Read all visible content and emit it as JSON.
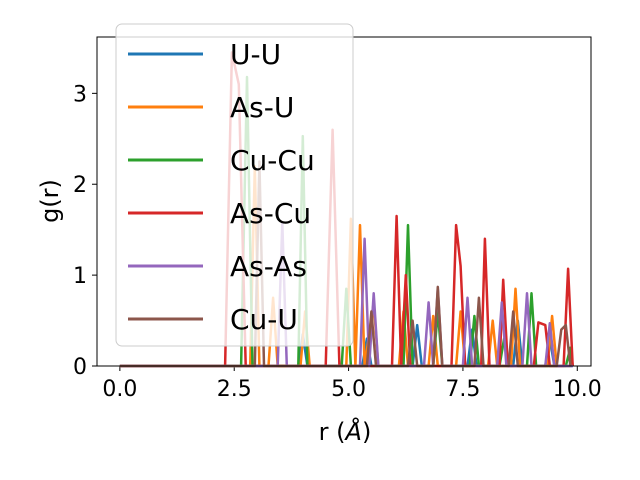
{
  "chart_data": {
    "type": "line",
    "xlabel_main": "r (",
    "xlabel_unit": "Å",
    "xlabel_close": ")",
    "ylabel": "g(r)",
    "xlim": [
      -0.5,
      10.3
    ],
    "ylim": [
      0,
      3.62
    ],
    "xticks": [
      0.0,
      2.5,
      5.0,
      7.5,
      10.0
    ],
    "xtick_labels": [
      "0.0",
      "2.5",
      "5.0",
      "7.5",
      "10.0"
    ],
    "yticks": [
      0,
      1,
      2,
      3
    ],
    "ytick_labels": [
      "0",
      "1",
      "2",
      "3"
    ],
    "grid": false,
    "legend_position": "upper-left",
    "series": [
      {
        "name": "U-U",
        "color": "#1f77b4",
        "points": [
          [
            0,
            0
          ],
          [
            3.9,
            0
          ],
          [
            4.0,
            0.35
          ],
          [
            4.1,
            0
          ],
          [
            5.3,
            0
          ],
          [
            5.4,
            0.3
          ],
          [
            5.5,
            0
          ],
          [
            6.4,
            0
          ],
          [
            6.5,
            0.45
          ],
          [
            6.6,
            0
          ],
          [
            7.6,
            0
          ],
          [
            7.7,
            0.4
          ],
          [
            7.8,
            0
          ],
          [
            8.6,
            0
          ],
          [
            8.7,
            0.5
          ],
          [
            8.8,
            0
          ],
          [
            9.3,
            0
          ],
          [
            9.4,
            0.3
          ],
          [
            9.5,
            0
          ],
          [
            9.9,
            0
          ]
        ]
      },
      {
        "name": "As-U",
        "color": "#ff7f0e",
        "points": [
          [
            0,
            0
          ],
          [
            2.85,
            0
          ],
          [
            2.95,
            2.2
          ],
          [
            3.05,
            0
          ],
          [
            3.25,
            0
          ],
          [
            3.35,
            0.75
          ],
          [
            3.45,
            0
          ],
          [
            3.95,
            0
          ],
          [
            4.05,
            0.6
          ],
          [
            4.15,
            0
          ],
          [
            4.95,
            0
          ],
          [
            5.05,
            1.62
          ],
          [
            5.15,
            0
          ],
          [
            5.25,
            1.55
          ],
          [
            5.35,
            0
          ],
          [
            5.55,
            0.7
          ],
          [
            5.65,
            0
          ],
          [
            6.1,
            0
          ],
          [
            6.2,
            0.6
          ],
          [
            6.3,
            0
          ],
          [
            6.75,
            0
          ],
          [
            6.85,
            0.55
          ],
          [
            6.95,
            0
          ],
          [
            7.35,
            0
          ],
          [
            7.45,
            0.6
          ],
          [
            7.55,
            0
          ],
          [
            8.05,
            0
          ],
          [
            8.15,
            0.5
          ],
          [
            8.25,
            0
          ],
          [
            8.55,
            0
          ],
          [
            8.65,
            0.85
          ],
          [
            8.75,
            0
          ],
          [
            9.35,
            0
          ],
          [
            9.45,
            0.55
          ],
          [
            9.55,
            0
          ],
          [
            9.85,
            0
          ]
        ]
      },
      {
        "name": "Cu-Cu",
        "color": "#2ca02c",
        "points": [
          [
            0,
            0
          ],
          [
            2.65,
            0
          ],
          [
            2.78,
            3.18
          ],
          [
            2.9,
            0
          ],
          [
            3.9,
            0
          ],
          [
            4.0,
            2.53
          ],
          [
            4.1,
            0
          ],
          [
            4.85,
            0
          ],
          [
            4.95,
            0.85
          ],
          [
            5.05,
            0
          ],
          [
            6.2,
            0
          ],
          [
            6.3,
            1.55
          ],
          [
            6.4,
            0
          ],
          [
            6.85,
            0
          ],
          [
            6.95,
            0.6
          ],
          [
            7.05,
            0
          ],
          [
            7.65,
            0
          ],
          [
            7.75,
            0.55
          ],
          [
            7.85,
            0
          ],
          [
            8.3,
            0
          ],
          [
            8.4,
            0.3
          ],
          [
            8.5,
            0
          ],
          [
            8.9,
            0
          ],
          [
            9.0,
            0.8
          ],
          [
            9.1,
            0
          ],
          [
            9.75,
            0
          ],
          [
            9.85,
            0.2
          ],
          [
            9.9,
            0
          ]
        ]
      },
      {
        "name": "As-Cu",
        "color": "#d62728",
        "points": [
          [
            0,
            0
          ],
          [
            2.3,
            0
          ],
          [
            2.45,
            3.45
          ],
          [
            2.6,
            3.1
          ],
          [
            2.75,
            0
          ],
          [
            4.5,
            0
          ],
          [
            4.65,
            2.6
          ],
          [
            4.8,
            0
          ],
          [
            5.95,
            0
          ],
          [
            6.05,
            1.65
          ],
          [
            6.15,
            0
          ],
          [
            6.25,
            1.0
          ],
          [
            6.35,
            0
          ],
          [
            7.25,
            0
          ],
          [
            7.35,
            1.55
          ],
          [
            7.45,
            1.1
          ],
          [
            7.55,
            0
          ],
          [
            7.9,
            0
          ],
          [
            7.98,
            1.4
          ],
          [
            8.08,
            0
          ],
          [
            8.3,
            0
          ],
          [
            8.38,
            0.95
          ],
          [
            8.48,
            0
          ],
          [
            9.05,
            0
          ],
          [
            9.15,
            0.48
          ],
          [
            9.3,
            0.45
          ],
          [
            9.4,
            0
          ],
          [
            9.7,
            0
          ],
          [
            9.8,
            1.07
          ],
          [
            9.9,
            0
          ]
        ]
      },
      {
        "name": "As-As",
        "color": "#9467bd",
        "points": [
          [
            0,
            0
          ],
          [
            3.45,
            0
          ],
          [
            3.55,
            1.58
          ],
          [
            3.65,
            0
          ],
          [
            5.25,
            0
          ],
          [
            5.35,
            1.4
          ],
          [
            5.45,
            0
          ],
          [
            5.55,
            0.8
          ],
          [
            5.65,
            0
          ],
          [
            6.65,
            0
          ],
          [
            6.75,
            0.7
          ],
          [
            6.85,
            0
          ],
          [
            6.95,
            0.85
          ],
          [
            7.05,
            0
          ],
          [
            7.5,
            0
          ],
          [
            7.6,
            0.75
          ],
          [
            7.7,
            0
          ],
          [
            8.25,
            0
          ],
          [
            8.35,
            0.7
          ],
          [
            8.45,
            0
          ],
          [
            8.8,
            0
          ],
          [
            8.9,
            0.8
          ],
          [
            9.0,
            0
          ],
          [
            9.3,
            0
          ],
          [
            9.4,
            0.47
          ],
          [
            9.5,
            0
          ],
          [
            9.9,
            0
          ]
        ]
      },
      {
        "name": "Cu-U",
        "color": "#8c564b",
        "points": [
          [
            0,
            0
          ],
          [
            2.95,
            0
          ],
          [
            3.05,
            2.25
          ],
          [
            3.15,
            0
          ],
          [
            5.4,
            0
          ],
          [
            5.5,
            0.6
          ],
          [
            5.6,
            0
          ],
          [
            6.3,
            0
          ],
          [
            6.4,
            0.5
          ],
          [
            6.5,
            0
          ],
          [
            6.85,
            0
          ],
          [
            6.95,
            0.87
          ],
          [
            7.05,
            0
          ],
          [
            7.75,
            0
          ],
          [
            7.85,
            0.75
          ],
          [
            7.95,
            0
          ],
          [
            8.5,
            0
          ],
          [
            8.6,
            0.6
          ],
          [
            8.7,
            0
          ],
          [
            9.55,
            0
          ],
          [
            9.65,
            0.4
          ],
          [
            9.75,
            0.45
          ],
          [
            9.85,
            0
          ]
        ]
      }
    ]
  }
}
